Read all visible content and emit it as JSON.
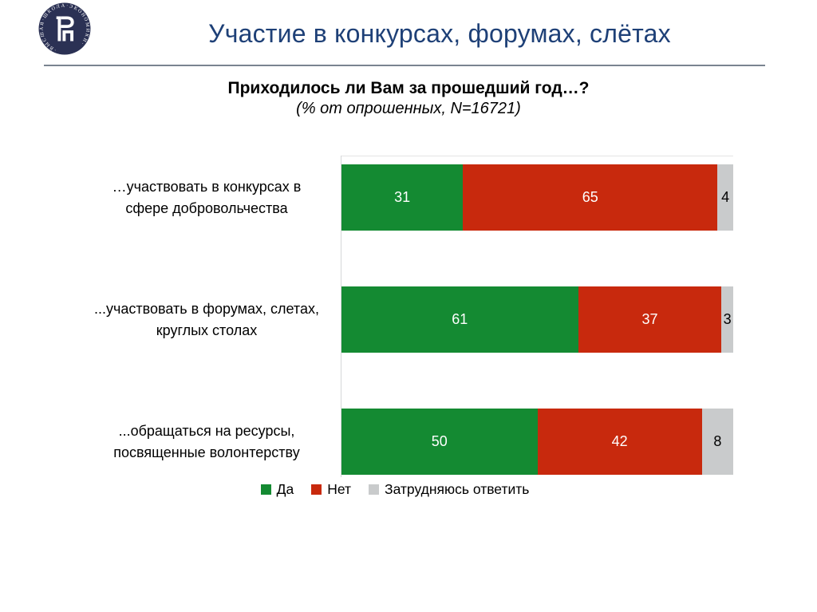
{
  "header": {
    "title": "Участие в конкурсах, форумах, слётах",
    "logo_ring_text": "·ВЫСШАЯ·ШКОЛА·ЭКОНОМИКИ·"
  },
  "chart_data": {
    "type": "bar",
    "variant": "horizontal-stacked-100",
    "title": "Приходилось ли Вам за прошедший год…?",
    "subtitle": "(% от опрошенных, N=16721)",
    "categories": [
      "…участвовать в конкурсах в сфере добровольчества",
      "...участвовать в форумах, слетах, круглых столах",
      "...обращаться на ресурсы, посвященные волонтерству"
    ],
    "category_lines": [
      [
        "…участвовать в конкурсах в",
        "сфере добровольчества"
      ],
      [
        "...участвовать в форумах, слетах,",
        "круглых столах"
      ],
      [
        "...обращаться на ресурсы,",
        "посвященные волонтерству"
      ]
    ],
    "series": [
      {
        "name": "Да",
        "color": "#148A32",
        "label_color": "#FFFFFF",
        "values": [
          31,
          61,
          50
        ]
      },
      {
        "name": "Нет",
        "color": "#C8290D",
        "label_color": "#FFFFFF",
        "values": [
          65,
          37,
          42
        ]
      },
      {
        "name": "Затрудняюсь ответить",
        "color": "#C9CBCC",
        "label_color": "#000000",
        "values": [
          4,
          3,
          8
        ]
      }
    ],
    "xlim": [
      0,
      100
    ],
    "legend_position": "bottom",
    "grid": false
  },
  "colors": {
    "title_navy": "#1E4077",
    "separator": "#7A8490",
    "axis_line": "#D5D7D9",
    "logo_navy": "#2B3154",
    "background": "#FFFFFF"
  }
}
